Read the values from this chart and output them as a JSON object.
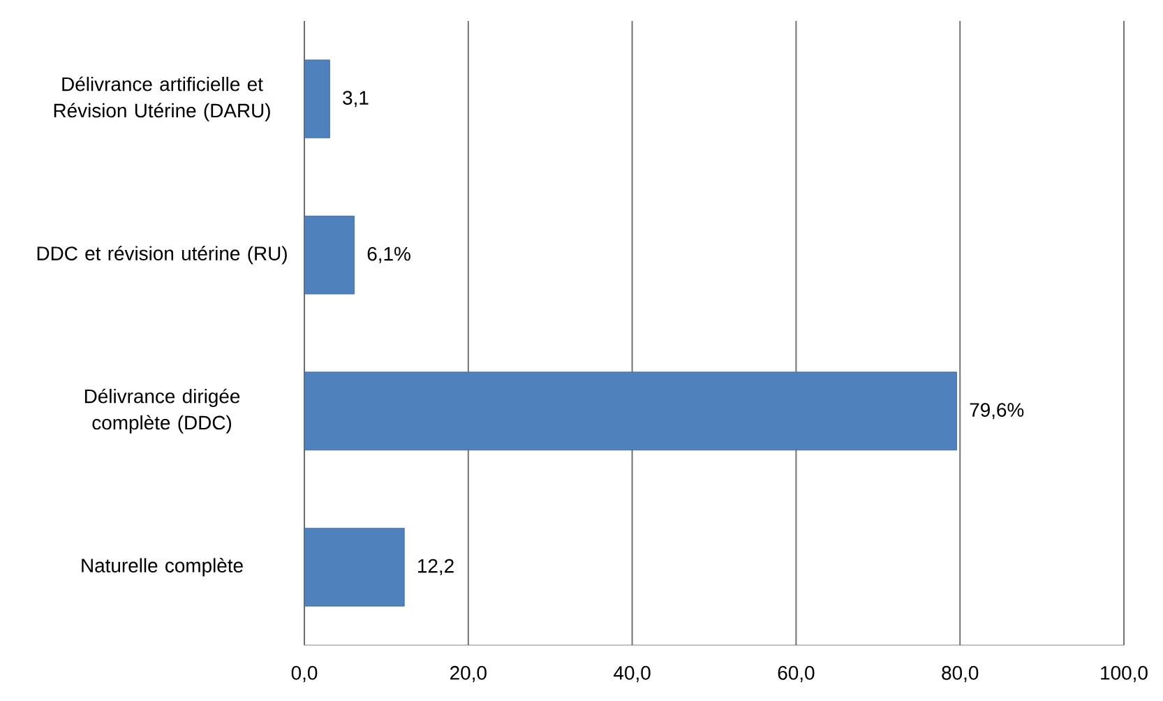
{
  "chart_data": {
    "type": "bar",
    "orientation": "horizontal",
    "categories": [
      "Délivrance artificielle et Révision Utérine (DARU)",
      "DDC et révision utérine (RU)",
      "Délivrance dirigée complète (DDC)",
      "Naturelle complète"
    ],
    "values": [
      3.1,
      6.1,
      79.6,
      12.2
    ],
    "value_labels": [
      "3,1",
      "6,1%",
      "79,6%",
      "12,2"
    ],
    "color": "#4f81bd",
    "xlim": [
      0,
      100
    ],
    "xticks": [
      {
        "value": 0,
        "label": "0,0"
      },
      {
        "value": 20,
        "label": "20,0"
      },
      {
        "value": 40,
        "label": "40,0"
      },
      {
        "value": 60,
        "label": "60,0"
      },
      {
        "value": 80,
        "label": "80,0"
      },
      {
        "value": 100,
        "label": "100,0"
      }
    ],
    "grid": "x"
  }
}
